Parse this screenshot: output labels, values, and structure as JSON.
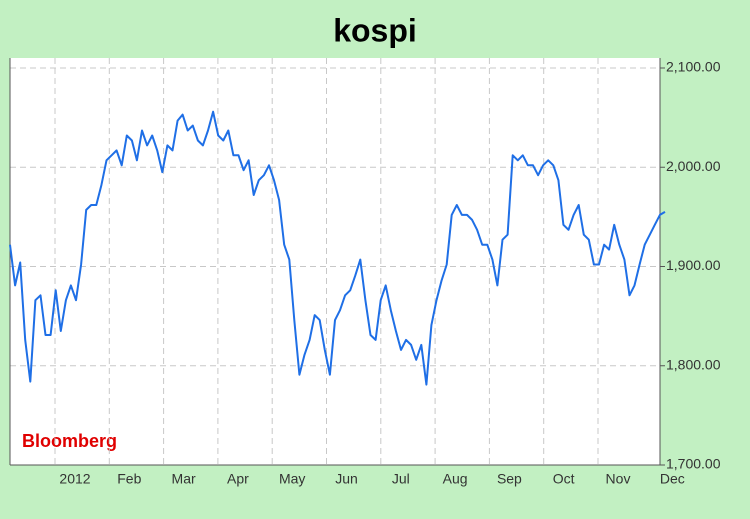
{
  "chart_data": {
    "type": "line",
    "title": "kospi",
    "source": "Bloomberg",
    "xtick_labels": [
      "2012",
      "Feb",
      "Mar",
      "Apr",
      "May",
      "Jun",
      "Jul",
      "Aug",
      "Sep",
      "Oct",
      "Nov",
      "Dec"
    ],
    "color": "#1f6fe6",
    "values": [
      1922,
      1881,
      1904,
      1826,
      1784,
      1866,
      1871,
      1831,
      1831,
      1876,
      1835,
      1866,
      1881,
      1866,
      1902,
      1957,
      1962,
      1962,
      1982,
      2007,
      2012,
      2017,
      2002,
      2032,
      2027,
      2007,
      2037,
      2022,
      2032,
      2017,
      1995,
      2022,
      2017,
      2047,
      2053,
      2037,
      2042,
      2027,
      2022,
      2037,
      2056,
      2032,
      2027,
      2037,
      2012,
      2012,
      1997,
      2007,
      1972,
      1987,
      1992,
      2002,
      1987,
      1967,
      1922,
      1907,
      1846,
      1791,
      1811,
      1826,
      1851,
      1846,
      1816,
      1791,
      1846,
      1856,
      1871,
      1876,
      1891,
      1907,
      1866,
      1831,
      1826,
      1866,
      1881,
      1856,
      1835,
      1816,
      1826,
      1821,
      1806,
      1821,
      1781,
      1841,
      1866,
      1886,
      1902,
      1952,
      1962,
      1952,
      1952,
      1947,
      1937,
      1922,
      1922,
      1907,
      1881,
      1927,
      1932,
      2012,
      2007,
      2012,
      2002,
      2002,
      1992,
      2002,
      2007,
      2002,
      1987,
      1942,
      1937,
      1952,
      1962,
      1932,
      1927,
      1902,
      1902,
      1922,
      1917,
      1942,
      1922,
      1907,
      1871,
      1881,
      1902,
      1922,
      1932,
      1942,
      1952,
      1955
    ],
    "ylim": [
      1700,
      2100
    ],
    "yticks": [
      {
        "value": 1700,
        "label": "1,700.00"
      },
      {
        "value": 1800,
        "label": "1,800.00"
      },
      {
        "value": 1900,
        "label": "1,900.00"
      },
      {
        "value": 2000,
        "label": "2,000.00"
      },
      {
        "value": 2100,
        "label": "2,100.00"
      }
    ],
    "grid": true
  }
}
